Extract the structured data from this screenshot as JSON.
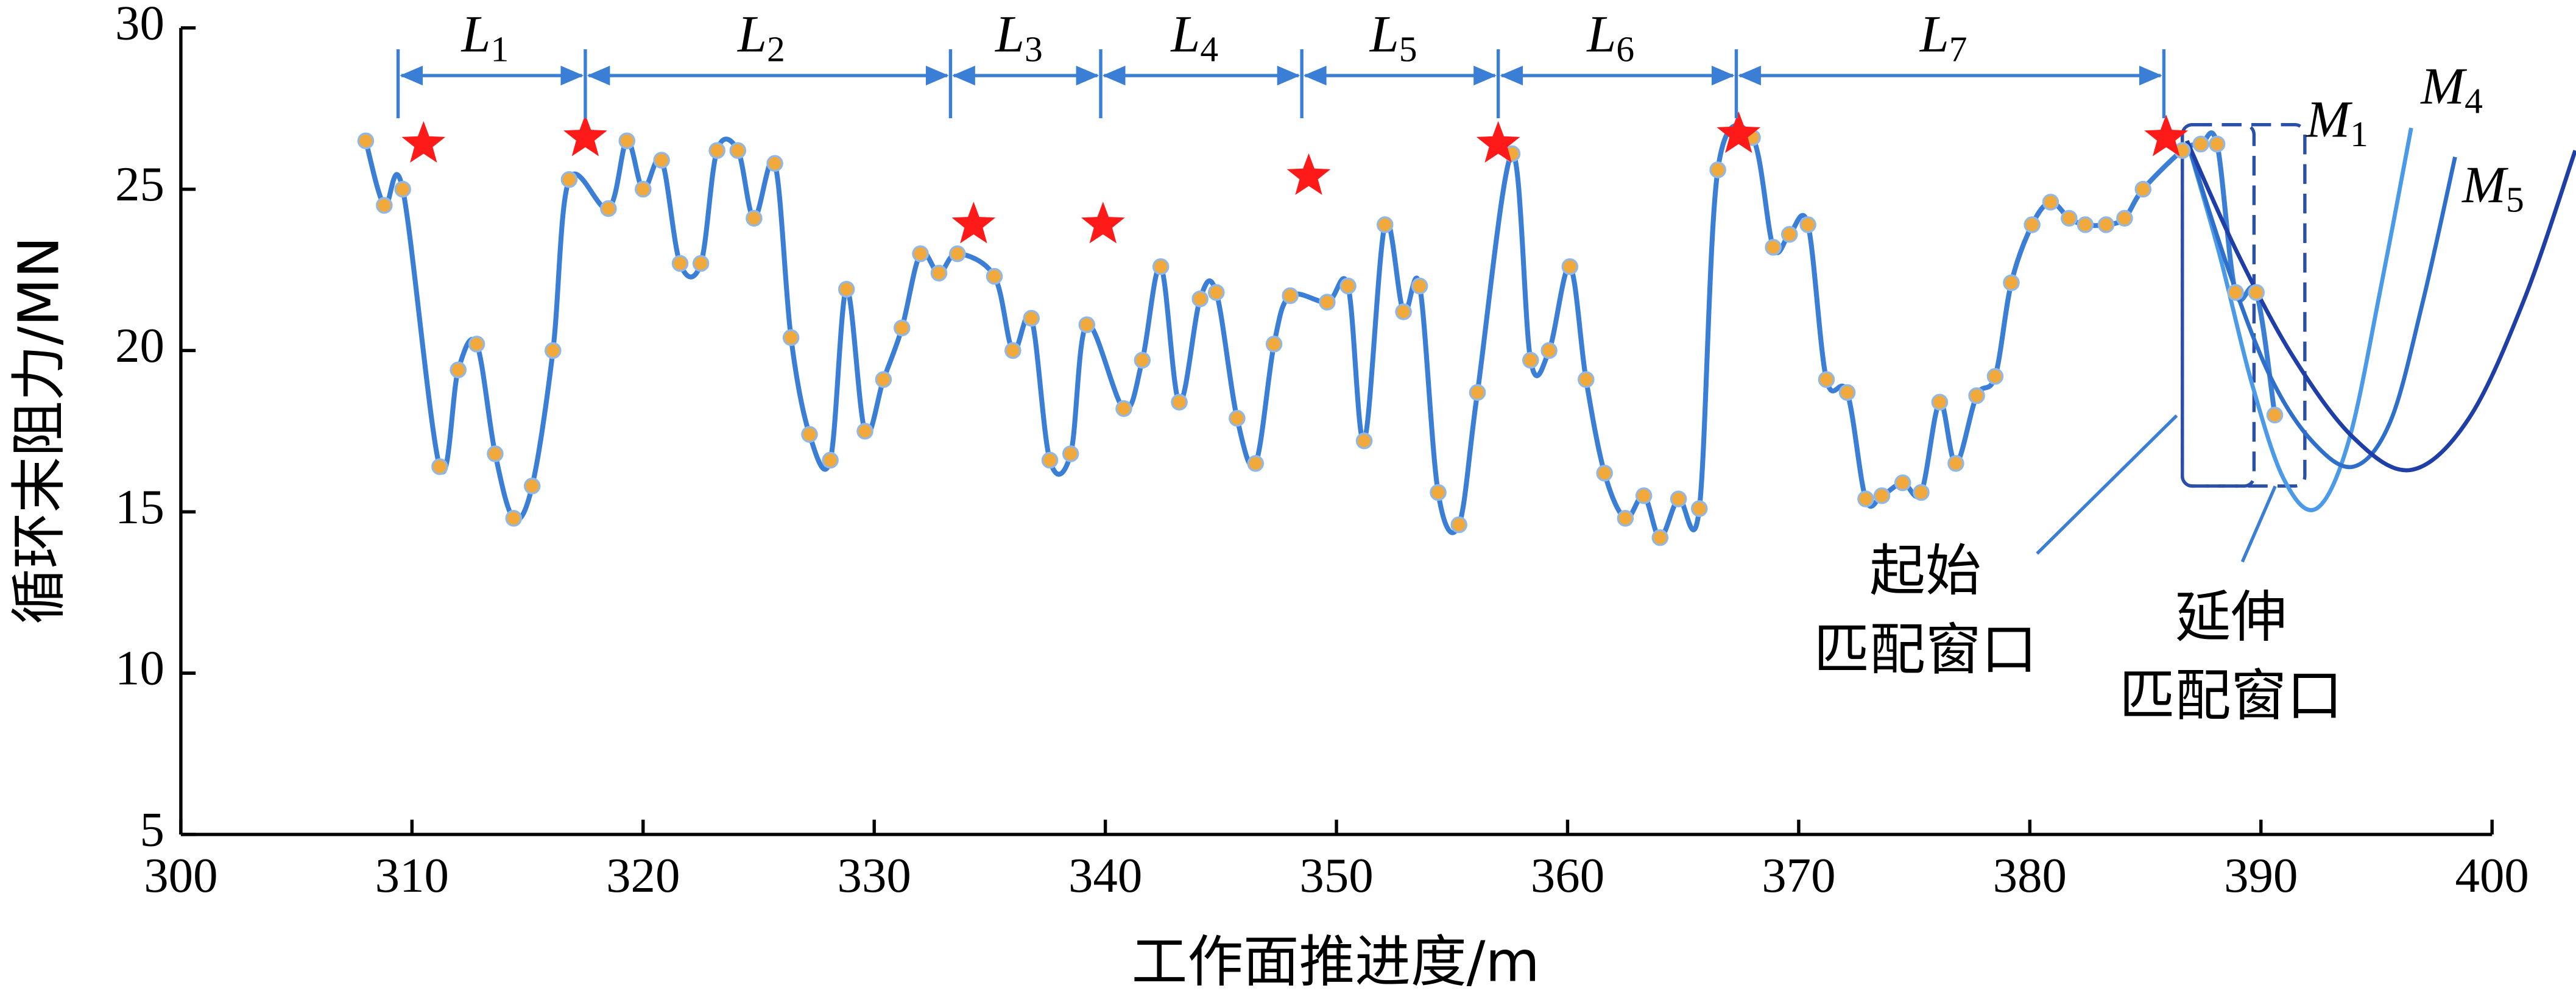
{
  "chart_data": {
    "type": "line",
    "xlabel": "工作面推进度/m",
    "ylabel": "循环末阻力/MN",
    "xlim": [
      300,
      400
    ],
    "ylim": [
      5,
      30
    ],
    "xticks": [
      300,
      310,
      320,
      330,
      340,
      350,
      360,
      370,
      380,
      390,
      400
    ],
    "yticks": [
      5,
      10,
      15,
      20,
      25,
      30
    ],
    "series": [
      {
        "color": "#3a7fd5",
        "marker": "circle",
        "marker_color": "#f2a93b",
        "x": [
          308.0,
          308.8,
          309.6,
          311.2,
          312.0,
          312.8,
          313.6,
          314.4,
          315.2,
          316.1,
          316.8,
          318.5,
          319.3,
          320.0,
          320.8,
          321.6,
          322.5,
          323.2,
          324.1,
          324.8,
          325.7,
          326.4,
          327.2,
          328.1,
          328.8,
          329.6,
          330.4,
          331.2,
          332.0,
          332.8,
          333.6,
          335.2,
          336.0,
          336.8,
          337.6,
          338.5,
          339.2,
          340.8,
          341.6,
          342.4,
          343.2,
          344.1,
          344.8,
          345.7,
          346.5,
          347.3,
          348.0,
          349.6,
          350.5,
          351.2,
          352.1,
          352.9,
          353.6,
          354.4,
          355.3,
          356.1,
          357.6,
          358.4,
          359.2,
          360.1,
          360.8,
          361.6,
          362.5,
          363.3,
          364.0,
          364.8,
          365.7,
          366.5,
          368.0,
          368.9,
          369.6,
          370.4,
          371.2,
          372.1,
          372.9,
          373.6,
          374.5,
          375.3,
          376.1,
          376.8,
          377.7,
          378.5,
          379.2,
          380.1,
          380.9,
          381.7,
          382.4,
          383.3,
          384.1,
          384.9,
          386.6,
          387.4,
          388.1,
          388.9,
          389.8,
          390.6
        ],
        "values": [
          26.5,
          24.5,
          25.0,
          16.4,
          19.4,
          20.2,
          16.8,
          14.8,
          15.8,
          20.0,
          25.3,
          24.4,
          26.5,
          25.0,
          25.9,
          22.7,
          22.7,
          26.2,
          26.2,
          24.1,
          25.8,
          20.4,
          17.4,
          16.6,
          21.9,
          17.5,
          19.1,
          20.7,
          23.0,
          22.4,
          23.0,
          22.3,
          20.0,
          21.0,
          16.6,
          16.8,
          20.8,
          18.2,
          19.7,
          22.6,
          18.4,
          21.6,
          21.8,
          17.9,
          16.5,
          20.2,
          21.7,
          21.5,
          22.0,
          17.2,
          23.9,
          21.2,
          22.0,
          15.6,
          14.6,
          18.7,
          26.1,
          19.7,
          20.0,
          22.6,
          19.1,
          16.2,
          14.8,
          15.5,
          14.2,
          15.4,
          15.1,
          25.6,
          26.6,
          23.2,
          23.6,
          23.9,
          19.1,
          18.7,
          15.4,
          15.5,
          15.9,
          15.6,
          18.4,
          16.5,
          18.6,
          19.2,
          22.1,
          23.9,
          24.6,
          24.1,
          23.9,
          23.9,
          24.1,
          25.0,
          26.2,
          26.4,
          26.4,
          21.8,
          21.8,
          18.0
        ]
      },
      {
        "color": "#ff1a1a",
        "marker": "star",
        "x": [
          310.5,
          317.5,
          334.3,
          339.9,
          348.8,
          357.0,
          367.4,
          385.9
        ],
        "values": [
          26.4,
          26.6,
          23.9,
          23.9,
          25.4,
          26.4,
          26.7,
          26.6
        ]
      },
      {
        "name": "M1",
        "color": "#4a9ae8",
        "x": [
          386.8,
          388.2,
          389.6,
          391.0,
          392.4,
          393.8,
          395.2,
          396.5
        ],
        "values": [
          26.5,
          23.0,
          19.0,
          16.0,
          15.1,
          17.2,
          22.0,
          26.9
        ]
      },
      {
        "name": "M4",
        "color": "#2f6fcc",
        "x": [
          386.8,
          388.6,
          390.4,
          392.2,
          394.0,
          395.6,
          397.0,
          398.4
        ],
        "values": [
          26.5,
          22.5,
          19.2,
          17.2,
          16.4,
          17.8,
          21.5,
          26.0
        ]
      },
      {
        "name": "M5",
        "color": "#1f3fa6",
        "x": [
          386.8,
          389.0,
          391.4,
          394.0,
          396.5,
          399.0,
          401.4,
          403.6
        ],
        "values": [
          26.5,
          23.0,
          19.8,
          17.3,
          16.3,
          17.9,
          21.6,
          26.2
        ]
      }
    ],
    "intervals": {
      "bounds": [
        309.4,
        317.5,
        333.3,
        339.8,
        348.5,
        357.0,
        367.3,
        385.8
      ],
      "labels": [
        "L1",
        "L2",
        "L3",
        "L4",
        "L5",
        "L6",
        "L7"
      ]
    },
    "windows": [
      {
        "label": [
          "起始",
          "匹配窗口"
        ],
        "x": [
          386.6,
          389.7
        ],
        "y": [
          15.8,
          27.0
        ]
      },
      {
        "label": [
          "延伸",
          "匹配窗口"
        ],
        "x": [
          386.6,
          391.9
        ],
        "y": [
          15.8,
          27.0
        ]
      }
    ]
  }
}
